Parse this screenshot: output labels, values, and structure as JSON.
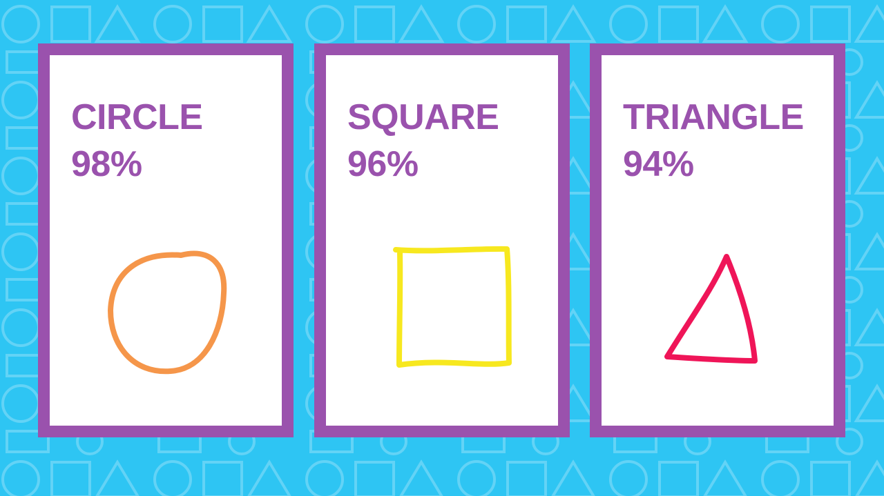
{
  "cards": [
    {
      "name": "CIRCLE",
      "percent": "98%",
      "shape": "circle",
      "color": "#f5964a"
    },
    {
      "name": "SQUARE",
      "percent": "96%",
      "shape": "square",
      "color": "#f7e81f"
    },
    {
      "name": "TRIANGLE",
      "percent": "94%",
      "shape": "triangle",
      "color": "#ef1558"
    }
  ],
  "colors": {
    "background": "#2ec5f3",
    "card_border": "#9a52ad",
    "text": "#9a52ad"
  }
}
